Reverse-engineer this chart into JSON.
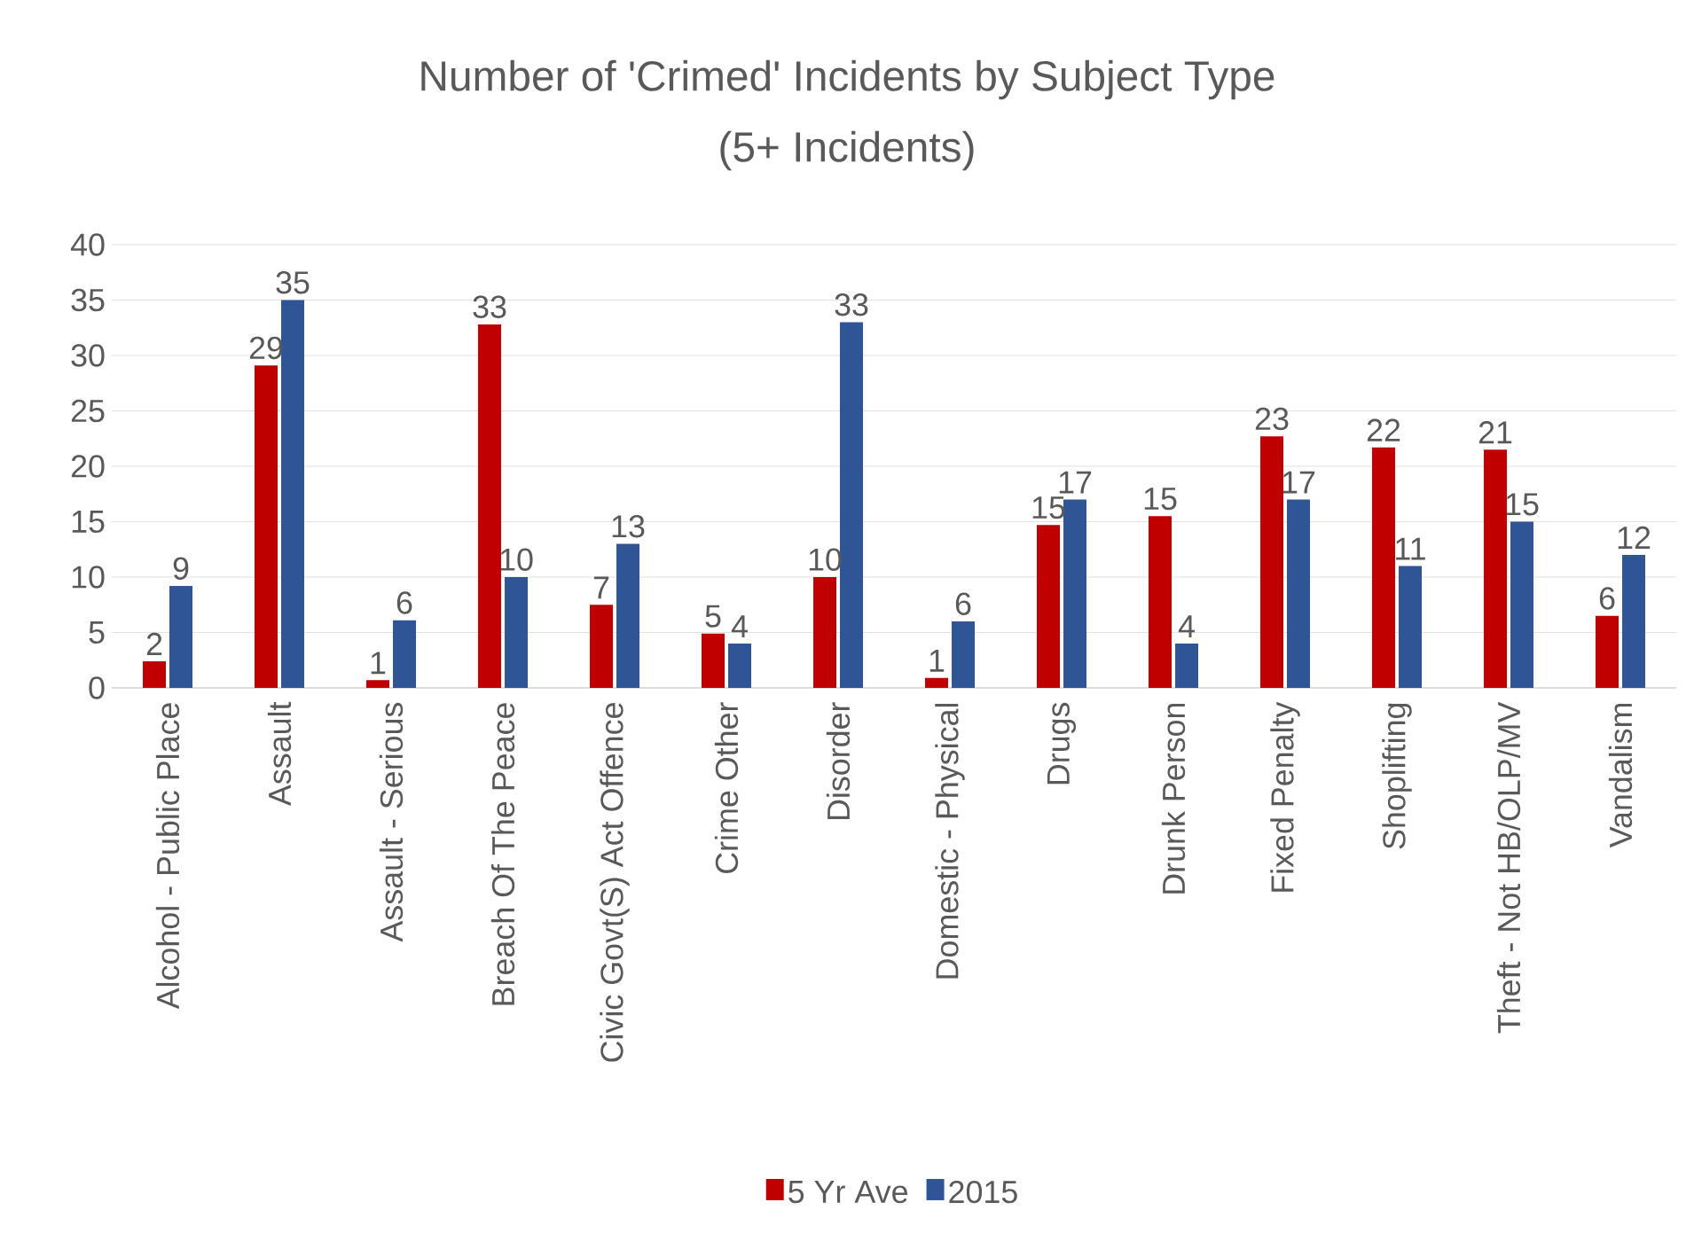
{
  "chart_data": {
    "type": "bar",
    "title": "Number of 'Crimed' Incidents by Subject Type",
    "subtitle": "(5+ Incidents)",
    "categories": [
      "Alcohol - Public Place",
      "Assault",
      "Assault - Serious",
      "Breach Of The Peace",
      "Civic Govt(S) Act Offence",
      "Crime Other",
      "Disorder",
      "Domestic - Physical",
      "Drugs",
      "Drunk Person",
      "Fixed Penalty",
      "Shoplifting",
      "Theft - Not HB/OLP/MV",
      "Vandalism"
    ],
    "series": [
      {
        "name": "5 Yr Ave",
        "color": "#c00000",
        "values": [
          2.4,
          29.1,
          0.7,
          32.8,
          7.5,
          4.9,
          10,
          0.9,
          14.7,
          15.5,
          22.7,
          21.7,
          21.5,
          6.5
        ],
        "value_labels": [
          "2",
          "29",
          "1",
          "33",
          "7",
          "5",
          "10",
          "1",
          "15",
          "15",
          "23",
          "22",
          "21",
          "6"
        ]
      },
      {
        "name": "2015",
        "color": "#2f5597",
        "values": [
          9.2,
          35,
          6.1,
          10,
          13,
          4,
          33,
          6,
          17,
          4,
          17,
          11,
          15,
          12
        ],
        "value_labels": [
          "9",
          "35",
          "6",
          "10",
          "13",
          "4",
          "33",
          "6",
          "17",
          "4",
          "17",
          "11",
          "15",
          "12"
        ]
      }
    ],
    "ylim": [
      0,
      40
    ],
    "yticks": [
      0,
      5,
      10,
      15,
      20,
      25,
      30,
      35,
      40
    ],
    "grid": "y",
    "legend": "bottom"
  }
}
